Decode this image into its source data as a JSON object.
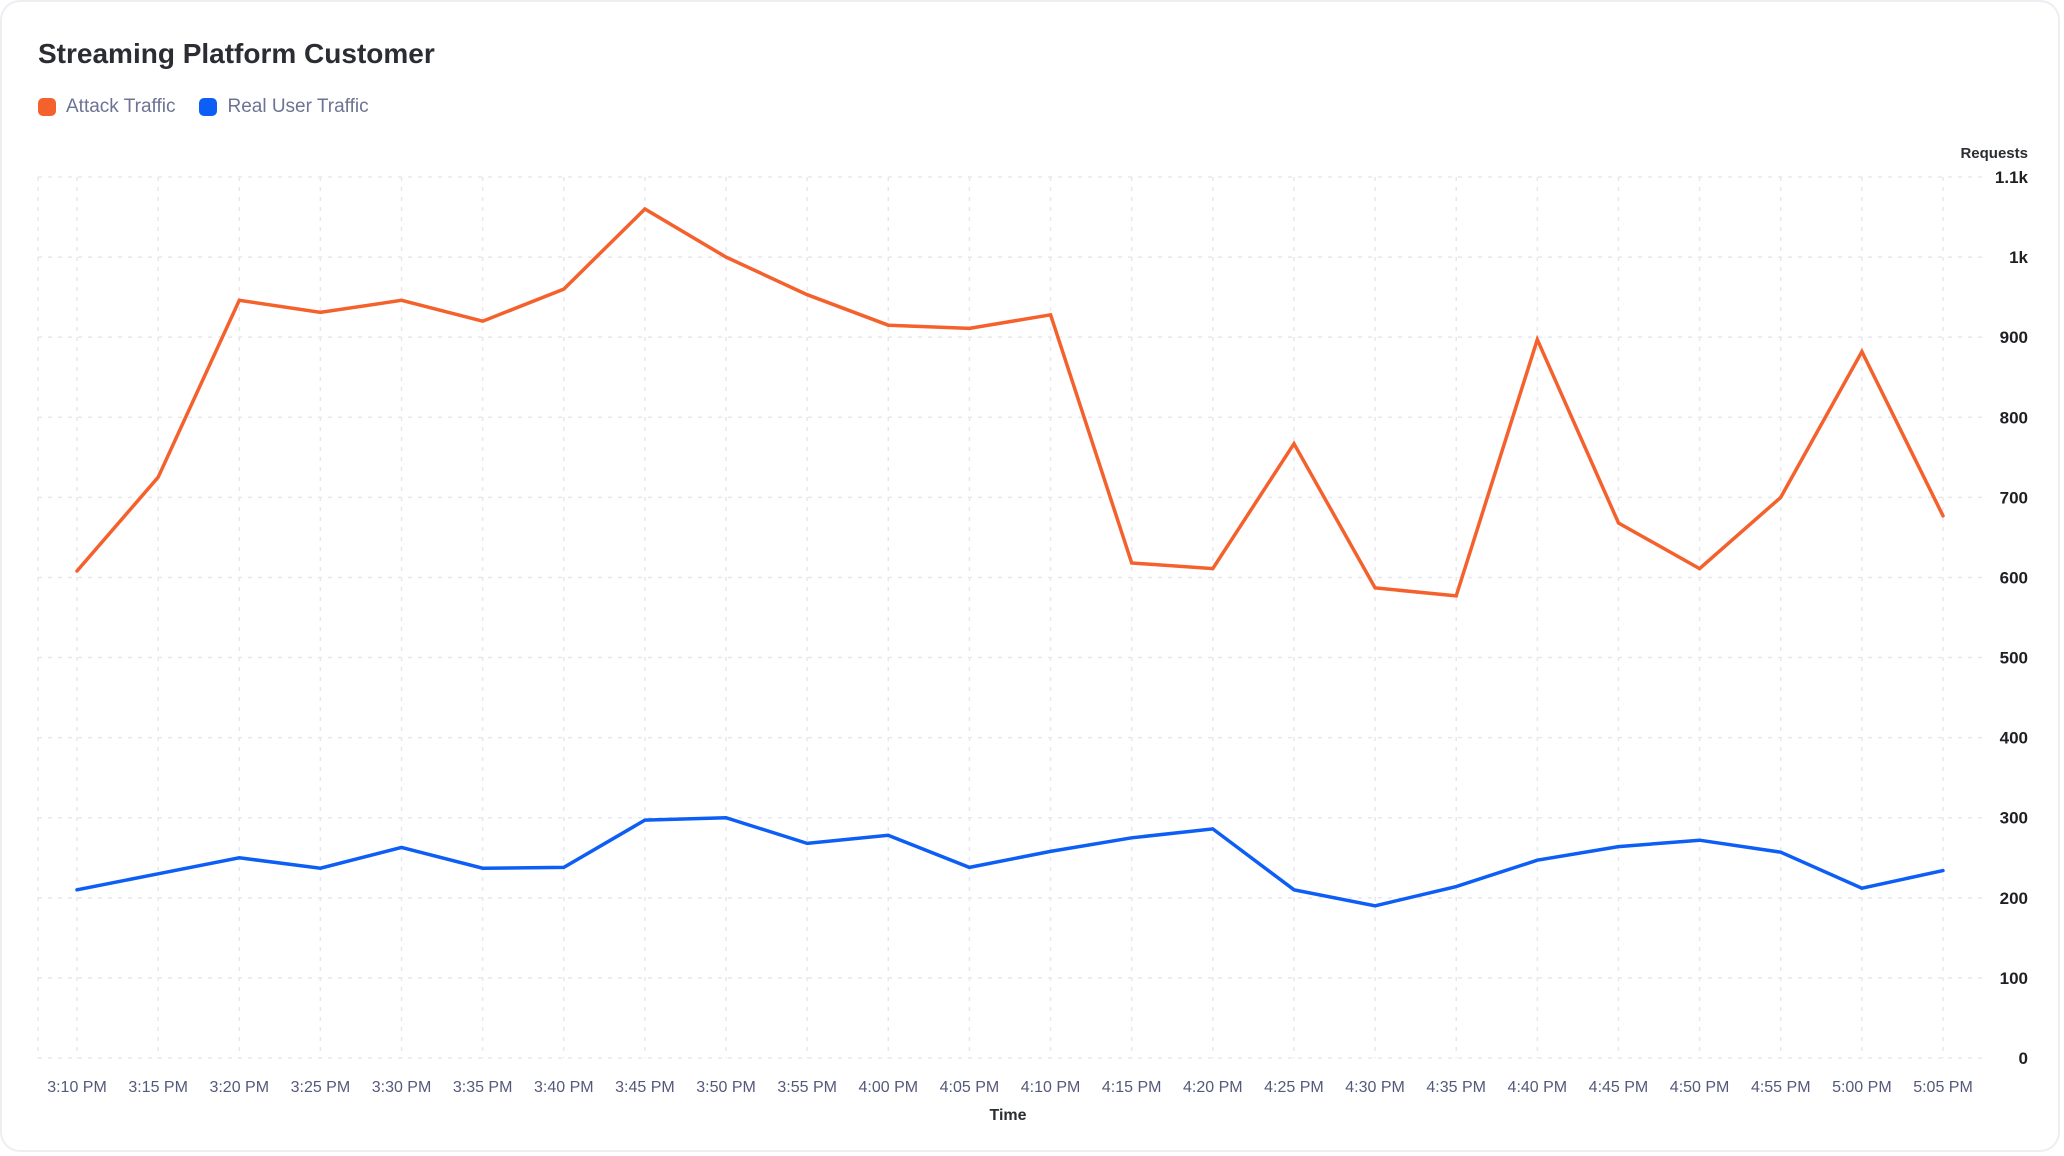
{
  "title": "Streaming Platform Customer",
  "legend": [
    {
      "label": "Attack Traffic",
      "color": "#f4612c"
    },
    {
      "label": "Real User Traffic",
      "color": "#0d5ef5"
    }
  ],
  "chart_data": {
    "type": "line",
    "title": "Streaming Platform Customer",
    "xlabel": "Time",
    "ylabel": "Requests",
    "ylim": [
      0,
      1100
    ],
    "y_ticks": [
      0,
      100,
      200,
      300,
      400,
      500,
      600,
      700,
      800,
      900,
      1000,
      1100
    ],
    "y_tick_labels": [
      "0",
      "100",
      "200",
      "300",
      "400",
      "500",
      "600",
      "700",
      "800",
      "900",
      "1k",
      "1.1k"
    ],
    "y_axis_position": "right",
    "grid": true,
    "legend_position": "top-left",
    "categories": [
      "3:10 PM",
      "3:15 PM",
      "3:20 PM",
      "3:25 PM",
      "3:30 PM",
      "3:35 PM",
      "3:40 PM",
      "3:45 PM",
      "3:50 PM",
      "3:55 PM",
      "4:00 PM",
      "4:05 PM",
      "4:10 PM",
      "4:15 PM",
      "4:20 PM",
      "4:25 PM",
      "4:30 PM",
      "4:35 PM",
      "4:40 PM",
      "4:45 PM",
      "4:50 PM",
      "4:55 PM",
      "5:00 PM",
      "5:05 PM"
    ],
    "series": [
      {
        "name": "Attack Traffic",
        "color": "#f4612c",
        "values": [
          608,
          725,
          946,
          931,
          946,
          920,
          960,
          1060,
          1000,
          953,
          915,
          911,
          928,
          618,
          611,
          767,
          587,
          577,
          897,
          668,
          611,
          700,
          882,
          677
        ]
      },
      {
        "name": "Real User Traffic",
        "color": "#0d5ef5",
        "values": [
          210,
          230,
          250,
          237,
          263,
          237,
          238,
          297,
          300,
          268,
          278,
          238,
          258,
          275,
          286,
          210,
          190,
          214,
          247,
          264,
          272,
          257,
          212,
          234
        ]
      }
    ]
  }
}
